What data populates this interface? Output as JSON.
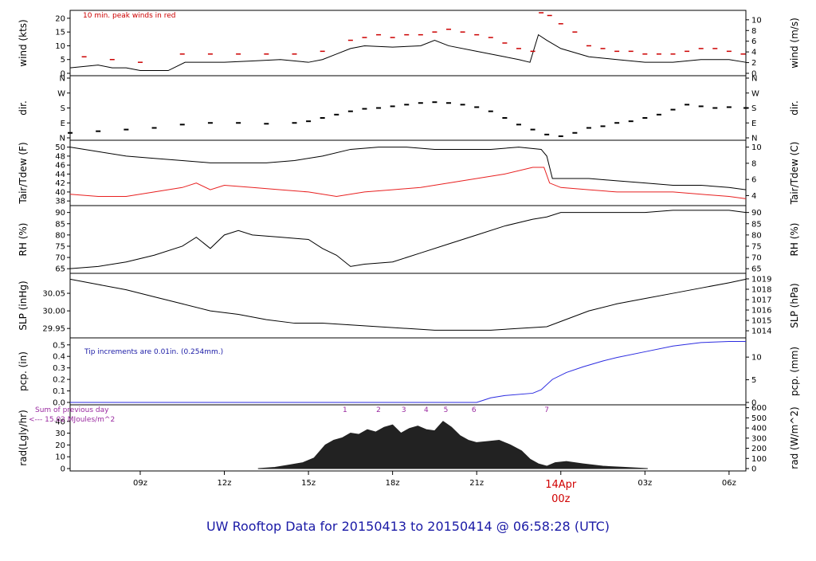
{
  "chart_data": {
    "type": "line",
    "title": "UW Rooftop Data for 20150413  to  20150414 @ 06:58:28  (UTC)",
    "title_color": "#1a1aa6",
    "x_axis": {
      "range_hours_utc": [
        6.5,
        30.6
      ],
      "ticks": [
        {
          "hour": 9,
          "label": "09z"
        },
        {
          "hour": 12,
          "label": "12z"
        },
        {
          "hour": 15,
          "label": "15z"
        },
        {
          "hour": 18,
          "label": "18z"
        },
        {
          "hour": 21,
          "label": "21z"
        },
        {
          "hour": 24,
          "label": "00z"
        },
        {
          "hour": 27,
          "label": "03z"
        },
        {
          "hour": 30,
          "label": "06z"
        }
      ],
      "date_marker": {
        "hour": 24,
        "label": "14Apr",
        "color": "#d00000"
      }
    },
    "panels": [
      {
        "id": "wind",
        "left_label": "wind (kts)",
        "right_label": "wind (m/s)",
        "left_ticks": [
          0,
          5,
          10,
          15,
          20
        ],
        "left_range": [
          0,
          22
        ],
        "right_ticks": [
          0,
          2,
          4,
          6,
          8,
          10
        ],
        "right_scale": 0.5144,
        "annotation": "10 min. peak winds in red",
        "annotation_color": "#cc0000",
        "series": [
          {
            "name": "wind speed",
            "color": "#000000",
            "hours": [
              6.5,
              7.5,
              8.0,
              8.5,
              9.0,
              9.5,
              10.0,
              10.6,
              11.0,
              12.0,
              13.0,
              14.0,
              15.0,
              15.5,
              16.0,
              16.5,
              17.0,
              18.0,
              19.0,
              19.5,
              20.0,
              21.0,
              22.0,
              22.5,
              22.9,
              23.2,
              23.5,
              24.0,
              25.0,
              26.0,
              27.0,
              28.0,
              29.0,
              30.0,
              30.6
            ],
            "values": [
              2,
              3,
              2,
              2,
              1,
              1,
              1,
              4,
              4,
              4,
              4.5,
              5,
              4,
              5,
              7,
              9,
              10,
              9.5,
              10,
              12,
              10,
              8,
              6,
              5,
              4,
              14,
              12,
              9,
              6,
              5,
              4,
              4,
              5,
              5,
              4
            ]
          },
          {
            "name": "peak wind",
            "color": "#cc0000",
            "hours": [
              7.0,
              8.0,
              9.0,
              10.5,
              11.5,
              12.5,
              13.5,
              14.5,
              15.5,
              16.5,
              17.0,
              17.5,
              18.0,
              18.5,
              19.0,
              19.5,
              20.0,
              20.5,
              21.0,
              21.5,
              22.0,
              22.5,
              23.0,
              23.3,
              23.6,
              24.0,
              24.5,
              25.0,
              25.5,
              26.0,
              26.5,
              27.0,
              27.5,
              28.0,
              28.5,
              29.0,
              29.5,
              30.0,
              30.5
            ],
            "values": [
              6,
              5,
              4,
              7,
              7,
              7,
              7,
              7,
              8,
              12,
              13,
              14,
              13,
              14,
              14,
              15,
              16,
              15,
              14,
              13,
              11,
              9,
              8,
              22,
              21,
              18,
              15,
              10,
              9,
              8,
              8,
              7,
              7,
              7,
              8,
              9,
              9,
              8,
              7
            ]
          }
        ]
      },
      {
        "id": "dir",
        "left_label": "dir.",
        "right_label": "dir.",
        "left_ticks": [
          "N",
          "E",
          "S",
          "W",
          "N"
        ],
        "series": [
          {
            "name": "wind direction (deg)",
            "color": "#000000",
            "hours": [
              6.5,
              7.5,
              8.5,
              9.5,
              10.5,
              11.5,
              12.5,
              13.5,
              14.5,
              15.0,
              15.5,
              16.0,
              16.5,
              17.0,
              17.5,
              18.0,
              18.5,
              19.0,
              19.5,
              20.0,
              20.5,
              21.0,
              21.5,
              22.0,
              22.5,
              23.0,
              23.5,
              24.0,
              24.5,
              25.0,
              25.5,
              26.0,
              26.5,
              27.0,
              27.5,
              28.0,
              28.5,
              29.0,
              29.5,
              30.0,
              30.6
            ],
            "values": [
              30,
              40,
              50,
              60,
              80,
              90,
              90,
              85,
              90,
              100,
              120,
              140,
              160,
              175,
              180,
              190,
              200,
              210,
              215,
              210,
              200,
              185,
              160,
              120,
              80,
              50,
              20,
              10,
              30,
              60,
              70,
              90,
              100,
              120,
              140,
              170,
              200,
              190,
              180,
              185,
              180
            ]
          }
        ]
      },
      {
        "id": "temp",
        "left_label": "Tair/Tdew (F)",
        "right_label": "Tair/Tdew (C)",
        "left_ticks": [
          38,
          40,
          42,
          44,
          46,
          48,
          50
        ],
        "left_range": [
          37.5,
          51
        ],
        "right_ticks": [
          4,
          6,
          8,
          10
        ],
        "series": [
          {
            "name": "Tair",
            "color": "#000000",
            "hours": [
              6.5,
              7.5,
              8.5,
              9.5,
              10.5,
              11.5,
              12.5,
              13.5,
              14.5,
              15.5,
              16.5,
              17.5,
              18.5,
              19.5,
              20.5,
              21.5,
              22.5,
              23.3,
              23.5,
              23.7,
              24.0,
              25.0,
              26.0,
              27.0,
              28.0,
              29.0,
              30.0,
              30.6
            ],
            "values": [
              50,
              49,
              48,
              47.5,
              47,
              46.5,
              46.5,
              46.5,
              47,
              48,
              49.5,
              50,
              50,
              49.5,
              49.5,
              49.5,
              50,
              49.5,
              48,
              43,
              43,
              43,
              42.5,
              42,
              41.5,
              41.5,
              41,
              40.5
            ]
          },
          {
            "name": "Tdew",
            "color": "#e82020",
            "hours": [
              6.5,
              7.5,
              8.5,
              9.5,
              10.5,
              11.0,
              11.5,
              12.0,
              13.0,
              14.0,
              15.0,
              16.0,
              17.0,
              18.0,
              19.0,
              20.0,
              21.0,
              22.0,
              23.0,
              23.4,
              23.6,
              24.0,
              25.0,
              26.0,
              27.0,
              28.0,
              29.0,
              30.0,
              30.6
            ],
            "values": [
              39.5,
              39,
              39,
              40,
              41,
              42,
              40.5,
              41.5,
              41,
              40.5,
              40,
              39,
              40,
              40.5,
              41,
              42,
              43,
              44,
              45.5,
              45.5,
              42,
              41,
              40.5,
              40,
              40,
              40,
              39.5,
              39,
              38.5
            ]
          }
        ]
      },
      {
        "id": "rh",
        "left_label": "RH (%)",
        "right_label": "RH (%)",
        "left_ticks": [
          65,
          70,
          75,
          80,
          85,
          90
        ],
        "left_range": [
          64,
          92
        ],
        "series": [
          {
            "name": "RH",
            "color": "#000000",
            "hours": [
              6.5,
              7.5,
              8.5,
              9.5,
              10.5,
              11.0,
              11.5,
              12.0,
              12.5,
              13.0,
              14.0,
              15.0,
              15.5,
              16.0,
              16.5,
              17.0,
              18.0,
              19.0,
              20.0,
              21.0,
              22.0,
              23.0,
              23.5,
              24.0,
              25.0,
              26.0,
              27.0,
              28.0,
              29.0,
              30.0,
              30.6
            ],
            "values": [
              65,
              66,
              68,
              71,
              75,
              79,
              74,
              80,
              82,
              80,
              79,
              78,
              74,
              71,
              66,
              67,
              68,
              72,
              76,
              80,
              84,
              87,
              88,
              90,
              90,
              90,
              90,
              91,
              91,
              91,
              90
            ]
          }
        ]
      },
      {
        "id": "slp",
        "left_label": "SLP (inHg)",
        "right_label": "SLP (hPa)",
        "left_ticks": [
          29.95,
          30.0,
          30.05
        ],
        "left_range": [
          29.93,
          30.1
        ],
        "right_ticks": [
          1014,
          1015,
          1016,
          1017,
          1018,
          1019
        ],
        "series": [
          {
            "name": "SLP",
            "color": "#000000",
            "hours": [
              6.5,
              7.5,
              8.5,
              9.5,
              10.5,
              11.5,
              12.5,
              13.5,
              14.5,
              15.5,
              16.5,
              17.5,
              18.5,
              19.5,
              20.5,
              21.5,
              22.5,
              23.5,
              24.0,
              25.0,
              26.0,
              27.0,
              28.0,
              29.0,
              30.0,
              30.6
            ],
            "values": [
              30.09,
              30.075,
              30.06,
              30.04,
              30.02,
              30.0,
              29.99,
              29.975,
              29.965,
              29.965,
              29.96,
              29.955,
              29.95,
              29.945,
              29.945,
              29.945,
              29.95,
              29.955,
              29.97,
              30.0,
              30.02,
              30.035,
              30.05,
              30.065,
              30.08,
              30.09
            ]
          }
        ]
      },
      {
        "id": "pcp",
        "left_label": "pcp. (in)",
        "right_label": "pcp. (mm)",
        "left_ticks": [
          0.0,
          0.1,
          0.2,
          0.3,
          0.4,
          0.5
        ],
        "left_range": [
          0,
          0.54
        ],
        "right_ticks": [
          0,
          5,
          10
        ],
        "annotation": "Tip increments are 0.01in. (0.254mm.)",
        "annotation_color": "#1a1aa6",
        "series": [
          {
            "name": "cumulative precipitation",
            "color": "#2b2be0",
            "hours": [
              6.5,
              21.0,
              21.5,
              22.0,
              23.0,
              23.3,
              23.7,
              24.2,
              24.8,
              25.5,
              26.0,
              27.0,
              28.0,
              29.0,
              30.0,
              30.6
            ],
            "values": [
              0,
              0,
              0.04,
              0.06,
              0.08,
              0.11,
              0.2,
              0.26,
              0.31,
              0.36,
              0.39,
              0.44,
              0.49,
              0.52,
              0.53,
              0.53
            ]
          }
        ]
      },
      {
        "id": "rad",
        "left_label": "rad(Lgly/hr)",
        "right_label": "rad (W/m^2)",
        "left_ticks": [
          0,
          10,
          20,
          30,
          40
        ],
        "left_range": [
          0,
          52
        ],
        "right_ticks": [
          0,
          100,
          200,
          300,
          400,
          500,
          600
        ],
        "annotation_lines": [
          "Sum of previous day",
          "<--- 15.02 MJoules/m^2"
        ],
        "annotation_color": "#9a2aa0",
        "markers": [
          {
            "hour": 16.3,
            "label": "1"
          },
          {
            "hour": 17.5,
            "label": "2"
          },
          {
            "hour": 18.4,
            "label": "3"
          },
          {
            "hour": 19.2,
            "label": "4"
          },
          {
            "hour": 19.9,
            "label": "5"
          },
          {
            "hour": 20.9,
            "label": "6"
          },
          {
            "hour": 23.5,
            "label": "7"
          }
        ],
        "series": [
          {
            "name": "solar radiation",
            "color": "#222222",
            "hours": [
              13.2,
              13.8,
              14.3,
              14.8,
              15.2,
              15.6,
              15.9,
              16.2,
              16.5,
              16.8,
              17.1,
              17.4,
              17.7,
              18.0,
              18.3,
              18.6,
              18.9,
              19.2,
              19.5,
              19.8,
              20.1,
              20.4,
              20.7,
              21.0,
              21.4,
              21.8,
              22.2,
              22.6,
              22.9,
              23.2,
              23.5,
              23.8,
              24.2,
              24.8,
              25.5,
              26.3,
              27.1
            ],
            "values": [
              0,
              1,
              3,
              5,
              9,
              20,
              24,
              26,
              30,
              29,
              33,
              31,
              35,
              37,
              30,
              34,
              36,
              33,
              32,
              40,
              35,
              28,
              24,
              22,
              23,
              24,
              20,
              15,
              8,
              4,
              2,
              5,
              6,
              4,
              2,
              1,
              0
            ]
          }
        ]
      }
    ]
  }
}
